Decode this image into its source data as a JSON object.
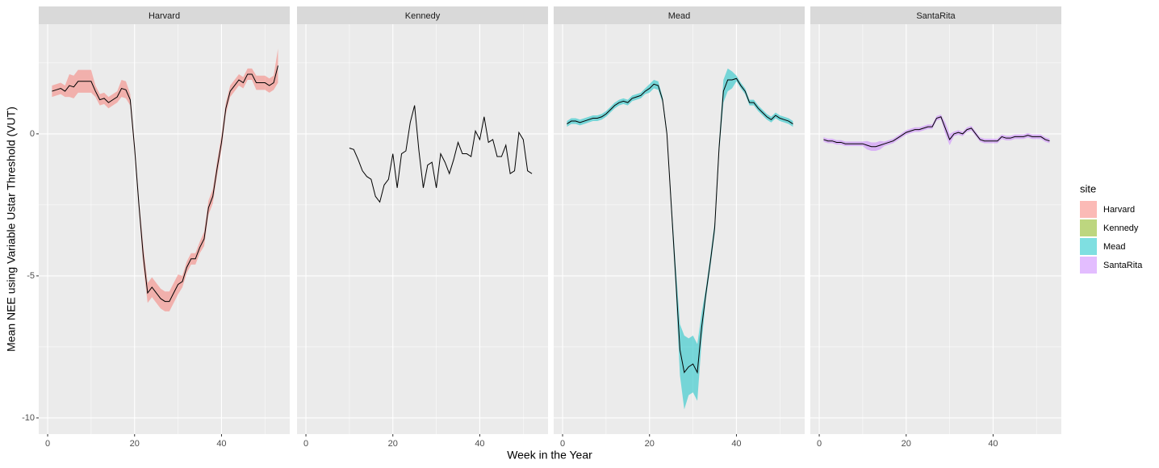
{
  "xlabel": "Week in the Year",
  "ylabel": "Mean NEE using Variable Ustar Threshold (VUT)",
  "legend_title": "site",
  "chart_data": [
    {
      "type": "line",
      "title": "Harvard",
      "xlim": [
        -2.05,
        55.7
      ],
      "ylim": [
        -10.57,
        3.86
      ],
      "xticks": [
        0,
        20,
        40
      ],
      "yticks": [
        -10,
        -5,
        0
      ],
      "xminor": [
        10,
        30,
        50
      ],
      "yminor": [
        -7.5,
        -2.5,
        2.5
      ],
      "grid": true,
      "x": [
        1,
        2,
        3,
        4,
        5,
        6,
        7,
        8,
        9,
        10,
        11,
        12,
        13,
        14,
        15,
        16,
        17,
        18,
        19,
        20,
        21,
        22,
        23,
        24,
        25,
        26,
        27,
        28,
        29,
        30,
        31,
        32,
        33,
        34,
        35,
        36,
        37,
        38,
        39,
        40,
        41,
        42,
        43,
        44,
        45,
        46,
        47,
        48,
        49,
        50,
        51,
        52,
        53
      ],
      "series": [
        {
          "name": "Harvard",
          "color": "#F8766D",
          "values": [
            1.5,
            1.55,
            1.6,
            1.5,
            1.7,
            1.65,
            1.85,
            1.85,
            1.85,
            1.85,
            1.5,
            1.2,
            1.25,
            1.1,
            1.2,
            1.3,
            1.6,
            1.55,
            1.2,
            -0.5,
            -2.5,
            -4.3,
            -5.6,
            -5.4,
            -5.6,
            -5.8,
            -5.9,
            -5.9,
            -5.6,
            -5.3,
            -5.2,
            -4.7,
            -4.4,
            -4.4,
            -4.0,
            -3.7,
            -2.6,
            -2.2,
            -1.2,
            -0.3,
            0.9,
            1.5,
            1.7,
            1.9,
            1.8,
            2.1,
            2.1,
            1.8,
            1.8,
            1.8,
            1.7,
            1.8,
            2.4
          ],
          "errors": [
            0.2,
            0.2,
            0.2,
            0.2,
            0.4,
            0.4,
            0.4,
            0.4,
            0.4,
            0.4,
            0.2,
            0.2,
            0.2,
            0.2,
            0.2,
            0.2,
            0.3,
            0.3,
            0.2,
            0.2,
            0.2,
            0.35,
            0.35,
            0.35,
            0.35,
            0.35,
            0.35,
            0.35,
            0.35,
            0.35,
            0.2,
            0.2,
            0.2,
            0.2,
            0.2,
            0.25,
            0.25,
            0.25,
            0.25,
            0.25,
            0.2,
            0.2,
            0.2,
            0.2,
            0.2,
            0.2,
            0.2,
            0.25,
            0.25,
            0.25,
            0.25,
            0.25,
            0.6
          ]
        }
      ]
    },
    {
      "type": "line",
      "title": "Kennedy",
      "xlim": [
        -2.05,
        55.7
      ],
      "ylim": [
        -10.57,
        3.86
      ],
      "xticks": [
        0,
        20,
        40
      ],
      "yticks": [
        -10,
        -5,
        0
      ],
      "xminor": [
        10,
        30,
        50
      ],
      "yminor": [
        -7.5,
        -2.5,
        2.5
      ],
      "grid": true,
      "x": [
        10,
        11,
        12,
        13,
        14,
        15,
        16,
        17,
        18,
        19,
        20,
        21,
        22,
        23,
        24,
        25,
        26,
        27,
        28,
        29,
        30,
        31,
        32,
        33,
        34,
        35,
        36,
        37,
        38,
        39,
        40,
        41,
        42,
        43,
        44,
        45,
        46,
        47,
        48,
        49,
        50,
        51,
        52
      ],
      "series": [
        {
          "name": "Kennedy",
          "color": "#7CAE00",
          "values": [
            -0.5,
            -0.55,
            -0.9,
            -1.3,
            -1.5,
            -1.6,
            -2.2,
            -2.4,
            -1.8,
            -1.6,
            -0.7,
            -1.9,
            -0.7,
            -0.6,
            0.4,
            1.0,
            -0.6,
            -1.9,
            -1.1,
            -1.0,
            -1.9,
            -0.7,
            -1.0,
            -1.4,
            -0.9,
            -0.3,
            -0.7,
            -0.7,
            -0.8,
            0.1,
            -0.2,
            0.6,
            -0.3,
            -0.2,
            -0.8,
            -0.8,
            -0.4,
            -1.4,
            -1.3,
            0.05,
            -0.2,
            -1.3,
            -1.4
          ]
        }
      ]
    },
    {
      "type": "line",
      "title": "Mead",
      "xlim": [
        -2.05,
        55.7
      ],
      "ylim": [
        -10.57,
        3.86
      ],
      "xticks": [
        0,
        20,
        40
      ],
      "yticks": [
        -10,
        -5,
        0
      ],
      "xminor": [
        10,
        30,
        50
      ],
      "yminor": [
        -7.5,
        -2.5,
        2.5
      ],
      "grid": true,
      "x": [
        1,
        2,
        3,
        4,
        5,
        6,
        7,
        8,
        9,
        10,
        11,
        12,
        13,
        14,
        15,
        16,
        17,
        18,
        19,
        20,
        21,
        22,
        23,
        24,
        25,
        26,
        27,
        28,
        29,
        30,
        31,
        32,
        33,
        34,
        35,
        36,
        37,
        38,
        39,
        40,
        41,
        42,
        43,
        44,
        45,
        46,
        47,
        48,
        49,
        50,
        51,
        52,
        53
      ],
      "series": [
        {
          "name": "Mead",
          "color": "#00BFC4",
          "values": [
            0.35,
            0.45,
            0.45,
            0.4,
            0.45,
            0.5,
            0.55,
            0.55,
            0.6,
            0.7,
            0.85,
            1.0,
            1.1,
            1.15,
            1.1,
            1.25,
            1.3,
            1.35,
            1.5,
            1.6,
            1.75,
            1.7,
            1.2,
            0.0,
            -2.5,
            -5.0,
            -7.6,
            -8.4,
            -8.2,
            -8.1,
            -8.4,
            -6.8,
            -5.6,
            -4.5,
            -3.3,
            -0.5,
            1.5,
            1.9,
            1.9,
            1.95,
            1.7,
            1.5,
            1.1,
            1.1,
            0.9,
            0.75,
            0.6,
            0.5,
            0.65,
            0.55,
            0.5,
            0.45,
            0.35
          ],
          "errors": [
            0.1,
            0.1,
            0.1,
            0.1,
            0.1,
            0.1,
            0.1,
            0.1,
            0.1,
            0.1,
            0.1,
            0.1,
            0.1,
            0.1,
            0.1,
            0.1,
            0.1,
            0.1,
            0.1,
            0.15,
            0.15,
            0.15,
            0.1,
            0.1,
            0.2,
            0.4,
            0.9,
            1.3,
            1.0,
            1.0,
            1.0,
            0.5,
            0.2,
            0.2,
            0.2,
            0.2,
            0.4,
            0.4,
            0.3,
            0.1,
            0.1,
            0.1,
            0.1,
            0.1,
            0.1,
            0.1,
            0.1,
            0.1,
            0.1,
            0.1,
            0.1,
            0.1,
            0.1
          ]
        }
      ]
    },
    {
      "type": "line",
      "title": "SantaRita",
      "xlim": [
        -2.05,
        55.7
      ],
      "ylim": [
        -10.57,
        3.86
      ],
      "xticks": [
        0,
        20,
        40
      ],
      "yticks": [
        -10,
        -5,
        0
      ],
      "xminor": [
        10,
        30,
        50
      ],
      "yminor": [
        -7.5,
        -2.5,
        2.5
      ],
      "grid": true,
      "x": [
        1,
        2,
        3,
        4,
        5,
        6,
        7,
        8,
        9,
        10,
        11,
        12,
        13,
        14,
        15,
        16,
        17,
        18,
        19,
        20,
        21,
        22,
        23,
        24,
        25,
        26,
        27,
        28,
        29,
        30,
        31,
        32,
        33,
        34,
        35,
        36,
        37,
        38,
        39,
        40,
        41,
        42,
        43,
        44,
        45,
        46,
        47,
        48,
        49,
        50,
        51,
        52,
        53
      ],
      "series": [
        {
          "name": "SantaRita",
          "color": "#C77CFF",
          "values": [
            -0.2,
            -0.25,
            -0.25,
            -0.3,
            -0.3,
            -0.35,
            -0.35,
            -0.35,
            -0.35,
            -0.35,
            -0.4,
            -0.45,
            -0.45,
            -0.4,
            -0.35,
            -0.3,
            -0.25,
            -0.15,
            -0.05,
            0.05,
            0.1,
            0.15,
            0.15,
            0.2,
            0.25,
            0.25,
            0.55,
            0.6,
            0.2,
            -0.2,
            0.0,
            0.05,
            0.0,
            0.15,
            0.2,
            0.0,
            -0.2,
            -0.25,
            -0.25,
            -0.25,
            -0.25,
            -0.1,
            -0.15,
            -0.15,
            -0.1,
            -0.1,
            -0.1,
            -0.05,
            -0.1,
            -0.1,
            -0.1,
            -0.2,
            -0.25
          ],
          "errors": [
            0.08,
            0.08,
            0.08,
            0.08,
            0.08,
            0.08,
            0.08,
            0.08,
            0.08,
            0.08,
            0.15,
            0.15,
            0.15,
            0.15,
            0.08,
            0.08,
            0.08,
            0.08,
            0.08,
            0.08,
            0.08,
            0.08,
            0.08,
            0.08,
            0.08,
            0.08,
            0.08,
            0.08,
            0.2,
            0.2,
            0.08,
            0.08,
            0.08,
            0.08,
            0.08,
            0.08,
            0.08,
            0.08,
            0.08,
            0.08,
            0.08,
            0.08,
            0.08,
            0.08,
            0.08,
            0.08,
            0.08,
            0.08,
            0.08,
            0.08,
            0.08,
            0.08,
            0.08
          ]
        }
      ]
    }
  ]
}
